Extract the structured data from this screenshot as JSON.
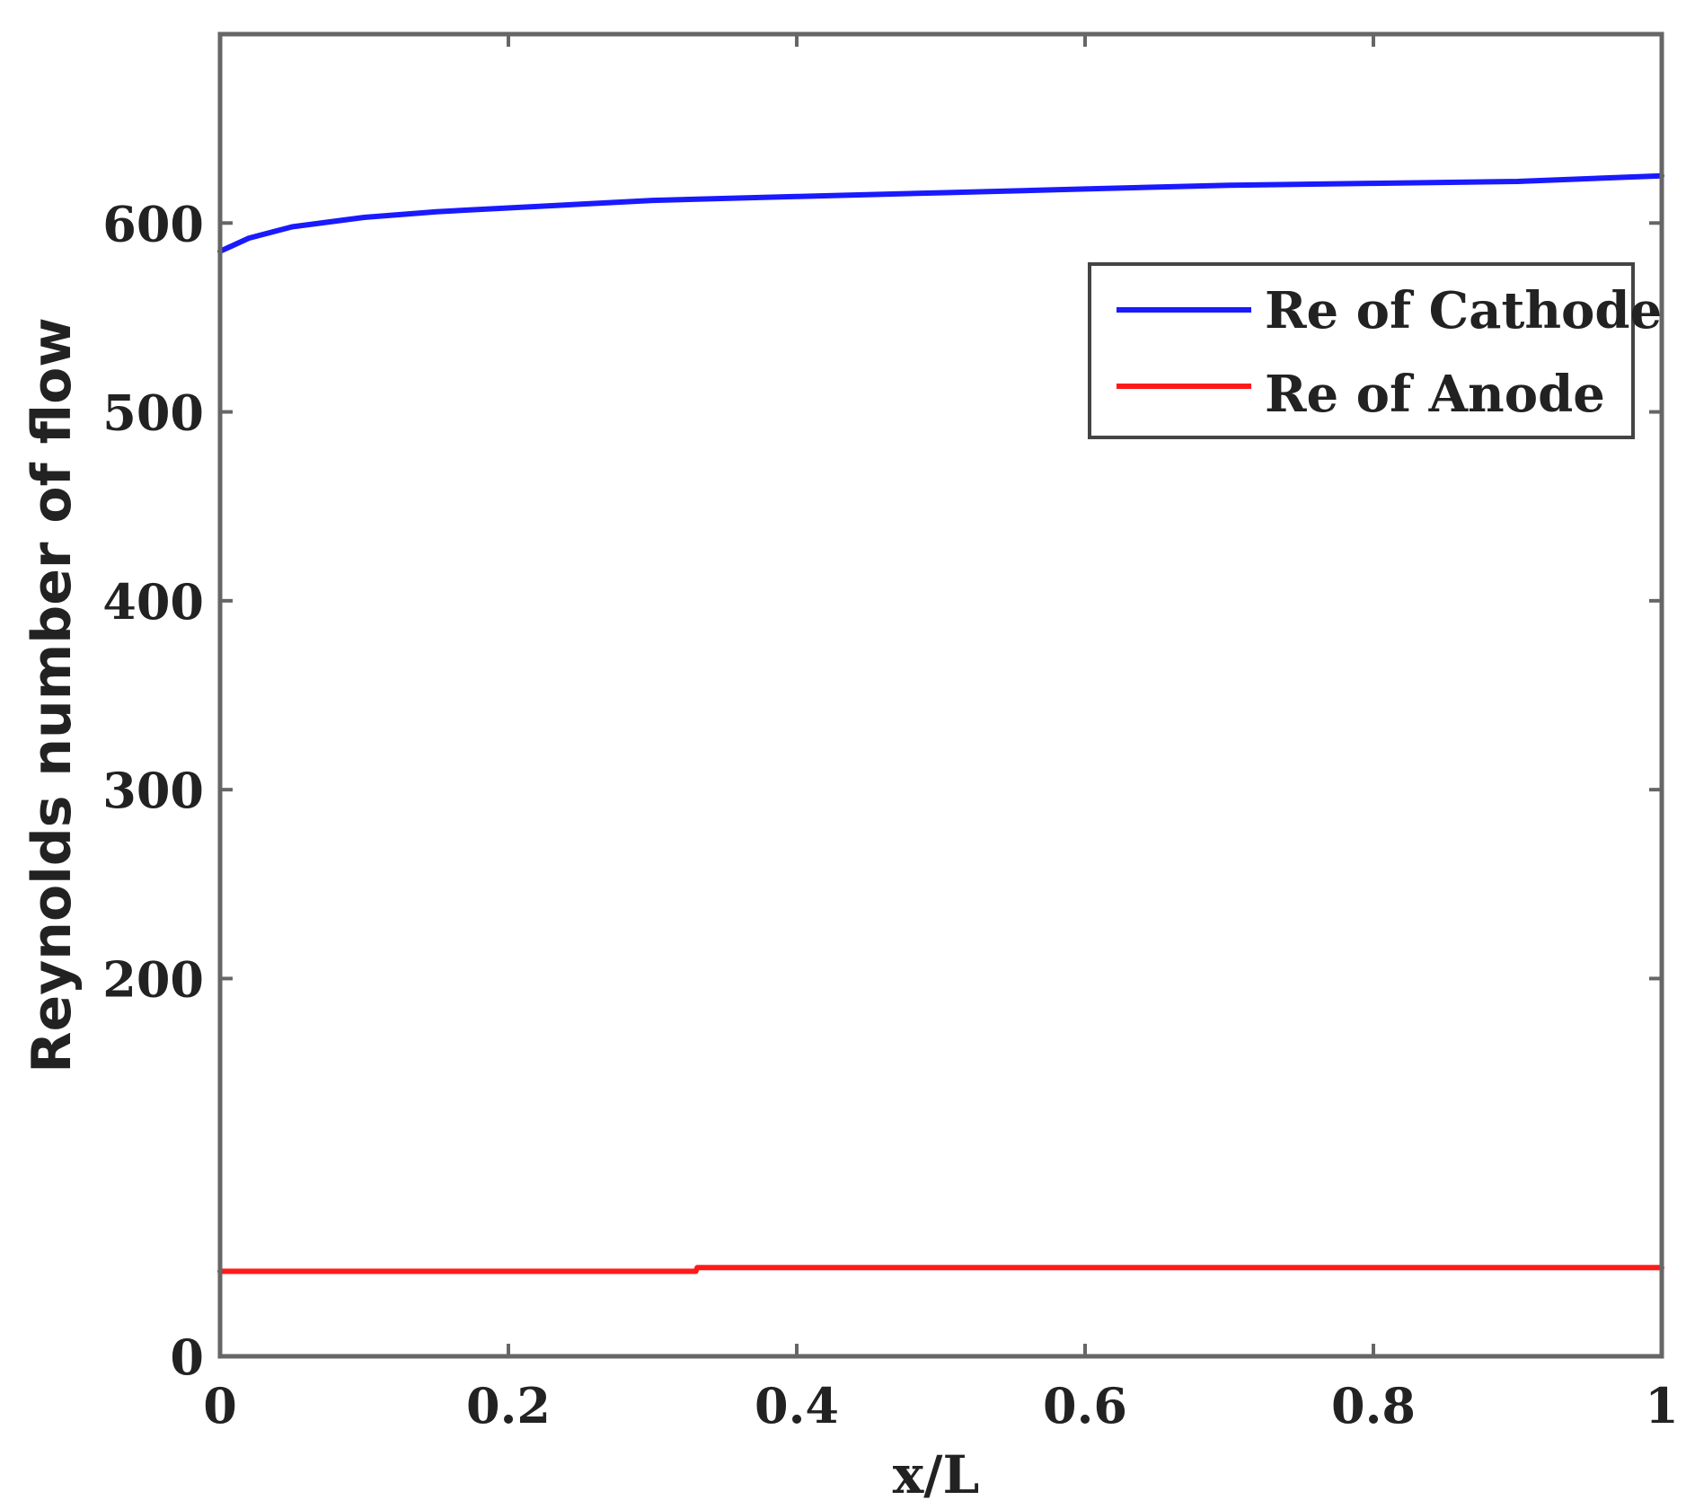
{
  "chart_data": {
    "type": "line",
    "title": "",
    "xlabel": "x/L",
    "ylabel": "Reynolds number of flow",
    "xlim": [
      0,
      1
    ],
    "ylim": [
      0,
      700
    ],
    "xticks": [
      0,
      0.2,
      0.4,
      0.6,
      0.8,
      1
    ],
    "xtick_labels": [
      "0",
      "0.2",
      "0.4",
      "0.6",
      "0.8",
      "1"
    ],
    "yticks": [
      0,
      200,
      300,
      400,
      500,
      600
    ],
    "ytick_labels": [
      "0",
      "200",
      "300",
      "400",
      "500",
      "600"
    ],
    "grid": false,
    "legend_position": "top-right",
    "series": [
      {
        "name": "Re of Cathode",
        "color": "#1a1aff",
        "x": [
          0,
          0.02,
          0.05,
          0.1,
          0.15,
          0.2,
          0.3,
          0.4,
          0.5,
          0.6,
          0.7,
          0.8,
          0.9,
          1.0
        ],
        "y": [
          585,
          592,
          598,
          603,
          606,
          608,
          612,
          614,
          616,
          618,
          620,
          621,
          622,
          625
        ]
      },
      {
        "name": "Re of Anode",
        "color": "#ff1a1a",
        "x": [
          0,
          0.33,
          0.331,
          1.0
        ],
        "y": [
          45,
          45,
          47,
          47
        ]
      }
    ]
  }
}
